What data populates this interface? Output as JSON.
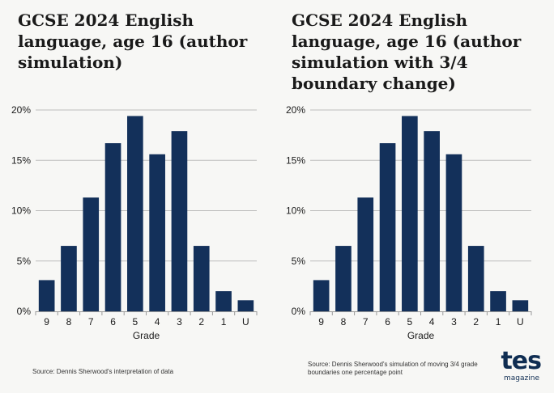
{
  "theme": {
    "bar_color": "#13305a",
    "grid_color": "#bdbdbd",
    "text_color": "#1a1a1a"
  },
  "chart_data": [
    {
      "type": "bar",
      "title": "GCSE 2024 English language, age 16 (author simulation)",
      "categories": [
        "9",
        "8",
        "7",
        "6",
        "5",
        "4",
        "3",
        "2",
        "1",
        "U"
      ],
      "values": [
        3.1,
        6.5,
        11.3,
        16.7,
        19.4,
        15.6,
        17.9,
        6.5,
        2.0,
        1.1
      ],
      "xlabel": "Grade",
      "ylabel": "",
      "ylim": [
        0,
        20
      ],
      "yticks": [
        "0%",
        "5%",
        "10%",
        "15%",
        "20%"
      ],
      "grid": true,
      "source": "Source: Dennis Sherwood's interpretation of data"
    },
    {
      "type": "bar",
      "title": "GCSE 2024 English language, age 16 (author simulation with 3/4 boundary change)",
      "categories": [
        "9",
        "8",
        "7",
        "6",
        "5",
        "4",
        "3",
        "2",
        "1",
        "U"
      ],
      "values": [
        3.1,
        6.5,
        11.3,
        16.7,
        19.4,
        17.9,
        15.6,
        6.5,
        2.0,
        1.1
      ],
      "xlabel": "Grade",
      "ylabel": "",
      "ylim": [
        0,
        20
      ],
      "yticks": [
        "0%",
        "5%",
        "10%",
        "15%",
        "20%"
      ],
      "grid": true,
      "source": "Source: Dennis Sherwood's simulation of moving 3/4 grade boundaries one percentage point"
    }
  ],
  "logo": {
    "main": "tes",
    "sub": "magazine"
  }
}
